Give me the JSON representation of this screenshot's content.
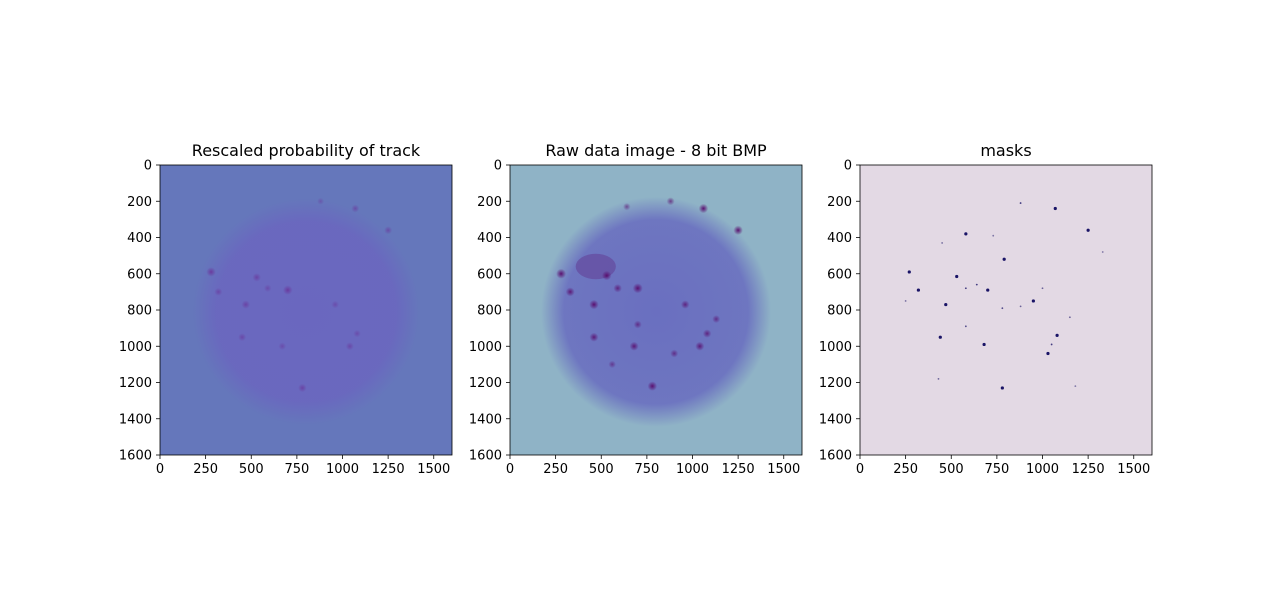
{
  "chart_data": [
    {
      "type": "heatmap",
      "title": "Rescaled probability of track",
      "xlabel": "",
      "ylabel": "",
      "xlim": [
        0,
        1600
      ],
      "ylim": [
        1600,
        0
      ],
      "xticks": [
        0,
        250,
        500,
        750,
        1000,
        1250,
        1500
      ],
      "yticks": [
        0,
        200,
        400,
        600,
        800,
        1000,
        1200,
        1400,
        1600
      ],
      "colors": {
        "background": "#6577bb",
        "disc": "#6a67bf",
        "spot": "#6a3a9e",
        "edge": "#000000"
      },
      "disc": {
        "cx": 800,
        "cy": 810,
        "r": 620
      },
      "spots": [
        {
          "x": 280,
          "y": 590,
          "v": 0.9
        },
        {
          "x": 320,
          "y": 700,
          "v": 0.6
        },
        {
          "x": 470,
          "y": 770,
          "v": 0.7
        },
        {
          "x": 530,
          "y": 620,
          "v": 0.7
        },
        {
          "x": 700,
          "y": 690,
          "v": 0.9
        },
        {
          "x": 1070,
          "y": 240,
          "v": 0.6
        },
        {
          "x": 1250,
          "y": 360,
          "v": 0.6
        },
        {
          "x": 780,
          "y": 1230,
          "v": 0.7
        },
        {
          "x": 450,
          "y": 950,
          "v": 0.6
        },
        {
          "x": 1040,
          "y": 1000,
          "v": 0.6
        },
        {
          "x": 960,
          "y": 770,
          "v": 0.5
        },
        {
          "x": 670,
          "y": 1000,
          "v": 0.5
        },
        {
          "x": 880,
          "y": 200,
          "v": 0.4
        },
        {
          "x": 590,
          "y": 680,
          "v": 0.5
        },
        {
          "x": 1080,
          "y": 930,
          "v": 0.5
        }
      ]
    },
    {
      "type": "heatmap",
      "title": "Raw data image - 8 bit BMP",
      "xlabel": "",
      "ylabel": "",
      "xlim": [
        0,
        1600
      ],
      "ylim": [
        1600,
        0
      ],
      "xticks": [
        0,
        250,
        500,
        750,
        1000,
        1250,
        1500
      ],
      "yticks": [
        0,
        200,
        400,
        600,
        800,
        1000,
        1200,
        1400,
        1600
      ],
      "colors": {
        "background": "#8fb3c6",
        "disc": "#6a6fc0",
        "spot": "#5a0f6f",
        "edge": "#000000"
      },
      "disc": {
        "cx": 800,
        "cy": 810,
        "r": 630
      },
      "spots": [
        {
          "x": 280,
          "y": 600,
          "v": 1.0
        },
        {
          "x": 330,
          "y": 700,
          "v": 0.8
        },
        {
          "x": 460,
          "y": 770,
          "v": 0.9
        },
        {
          "x": 530,
          "y": 610,
          "v": 0.9
        },
        {
          "x": 700,
          "y": 680,
          "v": 1.0
        },
        {
          "x": 1060,
          "y": 240,
          "v": 0.9
        },
        {
          "x": 1250,
          "y": 360,
          "v": 0.9
        },
        {
          "x": 780,
          "y": 1220,
          "v": 0.9
        },
        {
          "x": 460,
          "y": 950,
          "v": 0.8
        },
        {
          "x": 1040,
          "y": 1000,
          "v": 0.8
        },
        {
          "x": 960,
          "y": 770,
          "v": 0.7
        },
        {
          "x": 680,
          "y": 1000,
          "v": 0.8
        },
        {
          "x": 880,
          "y": 200,
          "v": 0.6
        },
        {
          "x": 590,
          "y": 680,
          "v": 0.7
        },
        {
          "x": 1080,
          "y": 930,
          "v": 0.7
        },
        {
          "x": 700,
          "y": 880,
          "v": 0.6
        },
        {
          "x": 1130,
          "y": 850,
          "v": 0.6
        },
        {
          "x": 640,
          "y": 230,
          "v": 0.5
        },
        {
          "x": 560,
          "y": 1100,
          "v": 0.5
        },
        {
          "x": 900,
          "y": 1040,
          "v": 0.6
        }
      ],
      "patch": {
        "cx": 470,
        "cy": 560,
        "rx": 110,
        "ry": 70,
        "v": 0.6
      }
    },
    {
      "type": "heatmap",
      "title": "masks",
      "xlabel": "",
      "ylabel": "",
      "xlim": [
        0,
        1600
      ],
      "ylim": [
        1600,
        0
      ],
      "xticks": [
        0,
        250,
        500,
        750,
        1000,
        1250,
        1500
      ],
      "yticks": [
        0,
        200,
        400,
        600,
        800,
        1000,
        1200,
        1400,
        1600
      ],
      "colors": {
        "background": "#e3d9e4",
        "spot": "#1a1466",
        "edge": "#2a0a55"
      },
      "spots": [
        {
          "x": 270,
          "y": 590,
          "v": 1.0
        },
        {
          "x": 320,
          "y": 690,
          "v": 1.0
        },
        {
          "x": 470,
          "y": 770,
          "v": 1.0
        },
        {
          "x": 530,
          "y": 615,
          "v": 1.0
        },
        {
          "x": 700,
          "y": 690,
          "v": 1.0
        },
        {
          "x": 1070,
          "y": 240,
          "v": 1.0
        },
        {
          "x": 1250,
          "y": 360,
          "v": 1.0
        },
        {
          "x": 780,
          "y": 1230,
          "v": 1.0
        },
        {
          "x": 440,
          "y": 950,
          "v": 1.0
        },
        {
          "x": 1030,
          "y": 1040,
          "v": 1.0
        },
        {
          "x": 950,
          "y": 750,
          "v": 1.0
        },
        {
          "x": 680,
          "y": 990,
          "v": 1.0
        },
        {
          "x": 880,
          "y": 210,
          "v": 0.8
        },
        {
          "x": 580,
          "y": 380,
          "v": 1.0
        },
        {
          "x": 790,
          "y": 520,
          "v": 1.0
        },
        {
          "x": 1080,
          "y": 940,
          "v": 1.0
        },
        {
          "x": 580,
          "y": 680,
          "v": 0.8
        },
        {
          "x": 640,
          "y": 660,
          "v": 0.8
        },
        {
          "x": 1050,
          "y": 990,
          "v": 0.8
        },
        {
          "x": 580,
          "y": 890,
          "v": 0.7
        },
        {
          "x": 780,
          "y": 790,
          "v": 0.7
        },
        {
          "x": 880,
          "y": 780,
          "v": 0.6
        },
        {
          "x": 1000,
          "y": 680,
          "v": 0.6
        },
        {
          "x": 1150,
          "y": 840,
          "v": 0.6
        },
        {
          "x": 430,
          "y": 1180,
          "v": 0.6
        },
        {
          "x": 450,
          "y": 430,
          "v": 0.5
        },
        {
          "x": 1330,
          "y": 480,
          "v": 0.5
        },
        {
          "x": 730,
          "y": 390,
          "v": 0.5
        },
        {
          "x": 1180,
          "y": 1220,
          "v": 0.5
        },
        {
          "x": 250,
          "y": 750,
          "v": 0.5
        }
      ]
    }
  ]
}
